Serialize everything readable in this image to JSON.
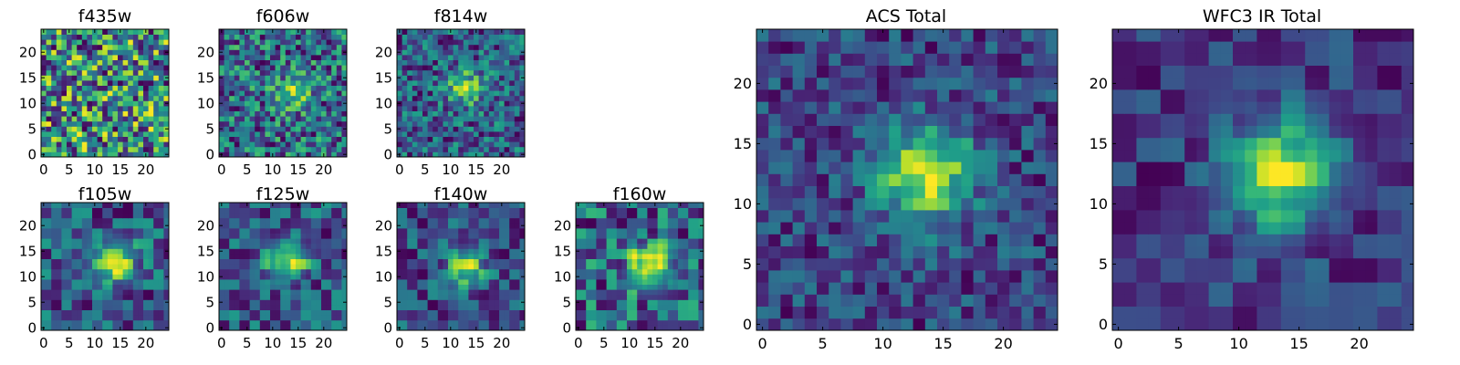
{
  "chart_data": [
    {
      "type": "heatmap",
      "title": "f435w",
      "x_ticks": [
        "0",
        "5",
        "10",
        "15",
        "20"
      ],
      "y_ticks": [
        "0",
        "5",
        "10",
        "15",
        "20"
      ],
      "xlim": [
        -0.5,
        24.5
      ],
      "ylim": [
        -0.5,
        24.5
      ],
      "grid": 25,
      "colormap": "viridis",
      "source": {
        "sigma": 0,
        "amp": 0,
        "noise": 1.0,
        "seed": 11
      }
    },
    {
      "type": "heatmap",
      "title": "f606w",
      "x_ticks": [
        "0",
        "5",
        "10",
        "15",
        "20"
      ],
      "y_ticks": [
        "0",
        "5",
        "10",
        "15",
        "20"
      ],
      "xlim": [
        -0.5,
        24.5
      ],
      "ylim": [
        -0.5,
        24.5
      ],
      "grid": 25,
      "colormap": "viridis",
      "source": {
        "cx": 14,
        "cy": 12,
        "sigma": 2.2,
        "amp": 0.45,
        "noise": 0.7,
        "seed": 23
      }
    },
    {
      "type": "heatmap",
      "title": "f814w",
      "x_ticks": [
        "0",
        "5",
        "10",
        "15",
        "20"
      ],
      "y_ticks": [
        "0",
        "5",
        "10",
        "15",
        "20"
      ],
      "xlim": [
        -0.5,
        24.5
      ],
      "ylim": [
        -0.5,
        24.5
      ],
      "grid": 25,
      "colormap": "viridis",
      "source": {
        "cx": 13,
        "cy": 13,
        "sigma": 2.5,
        "amp": 0.5,
        "noise": 0.65,
        "seed": 37
      }
    },
    {
      "type": "heatmap",
      "title": "f105w",
      "x_ticks": [
        "0",
        "5",
        "10",
        "15",
        "20"
      ],
      "y_ticks": [
        "0",
        "5",
        "10",
        "15",
        "20"
      ],
      "xlim": [
        -0.5,
        24.5
      ],
      "ylim": [
        -0.5,
        24.5
      ],
      "grid": 25,
      "colormap": "viridis",
      "block": 2,
      "source": {
        "cx": 14,
        "cy": 13,
        "sigma": 2.8,
        "amp": 0.55,
        "noise": 0.5,
        "seed": 41
      }
    },
    {
      "type": "heatmap",
      "title": "f125w",
      "x_ticks": [
        "0",
        "5",
        "10",
        "15",
        "20"
      ],
      "y_ticks": [
        "0",
        "5",
        "10",
        "15",
        "20"
      ],
      "xlim": [
        -0.5,
        24.5
      ],
      "ylim": [
        -0.5,
        24.5
      ],
      "grid": 25,
      "colormap": "viridis",
      "block": 2,
      "source": {
        "cx": 13,
        "cy": 13,
        "sigma": 2.6,
        "amp": 0.55,
        "noise": 0.5,
        "seed": 53
      }
    },
    {
      "type": "heatmap",
      "title": "f140w",
      "x_ticks": [
        "0",
        "5",
        "10",
        "15",
        "20"
      ],
      "y_ticks": [
        "0",
        "5",
        "10",
        "15",
        "20"
      ],
      "xlim": [
        -0.5,
        24.5
      ],
      "ylim": [
        -0.5,
        24.5
      ],
      "grid": 25,
      "colormap": "viridis",
      "block": 2,
      "source": {
        "cx": 13,
        "cy": 12,
        "sigma": 2.5,
        "amp": 0.6,
        "noise": 0.5,
        "seed": 67
      }
    },
    {
      "type": "heatmap",
      "title": "f160w",
      "x_ticks": [
        "0",
        "5",
        "10",
        "15",
        "20"
      ],
      "y_ticks": [
        "0",
        "5",
        "10",
        "15",
        "20"
      ],
      "xlim": [
        -0.5,
        24.5
      ],
      "ylim": [
        -0.5,
        24.5
      ],
      "grid": 25,
      "colormap": "viridis",
      "block": 2,
      "source": {
        "cx": 14,
        "cy": 12,
        "sigma": 2.6,
        "amp": 0.6,
        "noise": 0.45,
        "seed": 79
      }
    },
    {
      "type": "heatmap",
      "title": "ACS Total",
      "x_ticks": [
        "0",
        "5",
        "10",
        "15",
        "20"
      ],
      "y_ticks": [
        "0",
        "5",
        "10",
        "15",
        "20"
      ],
      "xlim": [
        -0.5,
        24.5
      ],
      "ylim": [
        -0.5,
        24.5
      ],
      "grid": 25,
      "colormap": "viridis",
      "source": {
        "cx": 13.5,
        "cy": 12.5,
        "sigma": 2.8,
        "amp": 0.75,
        "noise": 0.45,
        "seed": 97
      }
    },
    {
      "type": "heatmap",
      "title": "WFC3 IR Total",
      "x_ticks": [
        "0",
        "5",
        "10",
        "15",
        "20"
      ],
      "y_ticks": [
        "0",
        "5",
        "10",
        "15",
        "20"
      ],
      "xlim": [
        -0.5,
        24.5
      ],
      "ylim": [
        -0.5,
        24.5
      ],
      "grid": 25,
      "colormap": "viridis",
      "block": 2,
      "source": {
        "cx": 13.5,
        "cy": 12.5,
        "sigma": 3.2,
        "amp": 0.75,
        "noise": 0.35,
        "seed": 113
      }
    }
  ]
}
